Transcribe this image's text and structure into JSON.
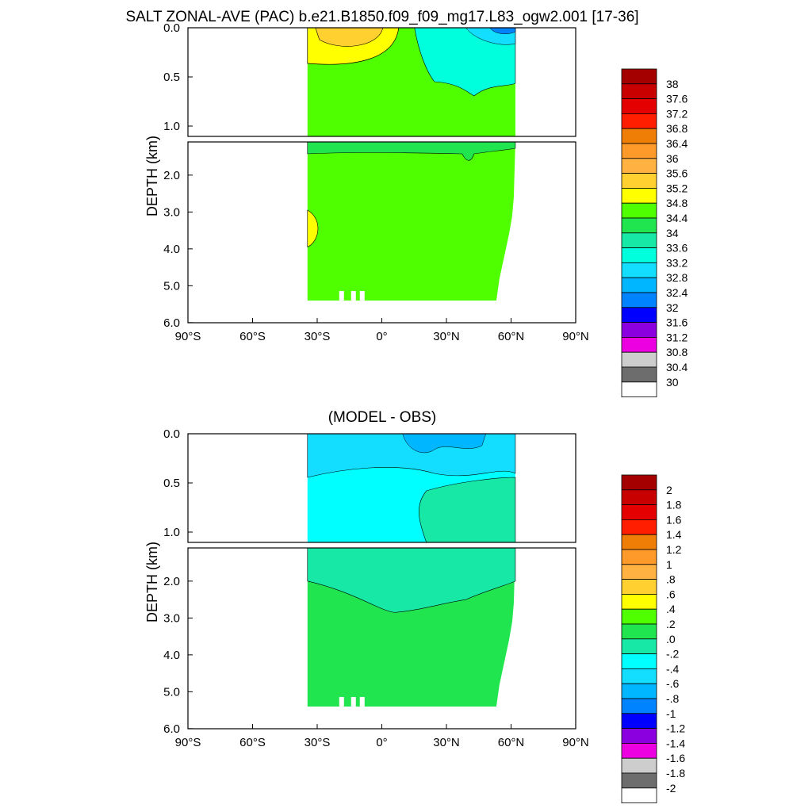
{
  "figure_title": "SALT ZONAL-AVE (PAC) b.e21.B1850.f09_f09_mg17.L83_ogw2.001 [17-36]",
  "chart_data": [
    {
      "type": "contour",
      "title": "",
      "ylabel": "DEPTH (km)",
      "xticks": [
        "90°S",
        "60°S",
        "30°S",
        "0°",
        "30°N",
        "60°N",
        "90°N"
      ],
      "xlim": [
        -90,
        90
      ],
      "ylim": [
        0,
        6
      ],
      "upper_panel_yticks": [
        "0.0",
        "0.5",
        "1.0"
      ],
      "lower_panel_yticks": [
        "2.0",
        "3.0",
        "4.0",
        "5.0",
        "6.0"
      ],
      "colorbar_labels": [
        "38",
        "37.6",
        "37.2",
        "36.8",
        "36.4",
        "36",
        "35.6",
        "35.2",
        "34.8",
        "34.4",
        "34",
        "33.6",
        "33.2",
        "32.8",
        "32.4",
        "32",
        "31.6",
        "31.2",
        "30.8",
        "30.4",
        "30"
      ],
      "colorbar_colors": [
        "#a50000",
        "#c80000",
        "#e40000",
        "#ff1e00",
        "#ef7e07",
        "#fd9a2a",
        "#ffb241",
        "#ffd02f",
        "#ffff00",
        "#4fff00",
        "#21e54f",
        "#17e8a6",
        "#00ffdc",
        "#14deff",
        "#00b7ff",
        "#0083ff",
        "#0000ff",
        "#8b00de",
        "#ec00e1",
        "#cdcdcd",
        "#6d6d6d",
        "#ffffff"
      ],
      "dominant_fill": "#4fff00"
    },
    {
      "type": "contour",
      "title": "(MODEL - OBS)",
      "ylabel": "DEPTH (km)",
      "xticks": [
        "90°S",
        "60°S",
        "30°S",
        "0°",
        "30°N",
        "60°N",
        "90°N"
      ],
      "xlim": [
        -90,
        90
      ],
      "ylim": [
        0,
        6
      ],
      "upper_panel_yticks": [
        "0.0",
        "0.5",
        "1.0"
      ],
      "lower_panel_yticks": [
        "2.0",
        "3.0",
        "4.0",
        "5.0",
        "6.0"
      ],
      "colorbar_labels": [
        "2",
        "1.8",
        "1.6",
        "1.4",
        "1.2",
        "1",
        ".8",
        ".6",
        ".4",
        ".2",
        ".0",
        "-.2",
        "-.4",
        "-.6",
        "-.8",
        "-1",
        "-1.2",
        "-1.4",
        "-1.6",
        "-1.8",
        "-2"
      ],
      "colorbar_colors": [
        "#a50000",
        "#c80000",
        "#e40000",
        "#ff1e00",
        "#ef7e07",
        "#fd9a2a",
        "#ffb241",
        "#ffd02f",
        "#ffff00",
        "#4fff00",
        "#21e54f",
        "#17e8a6",
        "#00ffff",
        "#14deff",
        "#00b7ff",
        "#0083ff",
        "#0000ff",
        "#8b00de",
        "#ec00e1",
        "#cdcdcd",
        "#6d6d6d",
        "#ffffff"
      ],
      "dominant_fill_upper": "#00ffff",
      "dominant_fill_lower": "#21e54f"
    }
  ]
}
